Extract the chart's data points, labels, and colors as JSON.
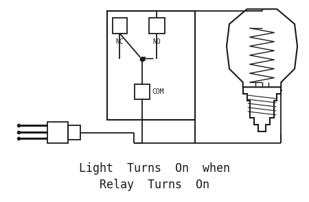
{
  "background_color": "#ffffff",
  "line_color": "#1a1a1a",
  "text_color": "#1a1a1a",
  "nc_label": "NC",
  "no_label": "NO",
  "com_label": "COM",
  "caption_line1": "Light  Turns  On  when",
  "caption_line2": "Relay  Turns  On",
  "font_size_labels": 7,
  "font_size_caption": 12
}
